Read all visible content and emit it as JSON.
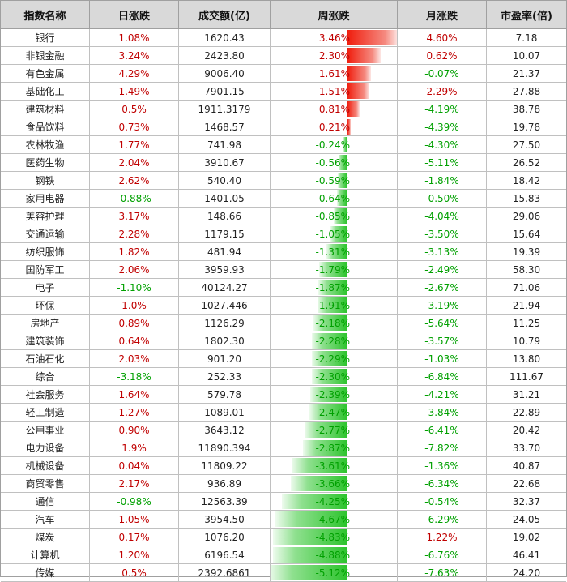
{
  "columns": [
    "指数名称",
    "日涨跌",
    "成交额(亿)",
    "周涨跌",
    "月涨跌",
    "市盈率(倍)"
  ],
  "colors": {
    "up": "#c00000",
    "down": "#00a000",
    "bar_up": "#f01e0e",
    "bar_down": "#2ec42e"
  },
  "rows": [
    {
      "name": "银行",
      "daily": "1.08%",
      "volume": "1620.43",
      "weekly": "3.46%",
      "monthly": "4.60%",
      "pe": "7.18"
    },
    {
      "name": "非银金融",
      "daily": "3.24%",
      "volume": "2423.80",
      "weekly": "2.30%",
      "monthly": "0.62%",
      "pe": "10.07"
    },
    {
      "name": "有色金属",
      "daily": "4.29%",
      "volume": "9006.40",
      "weekly": "1.61%",
      "monthly": "-0.07%",
      "pe": "21.37"
    },
    {
      "name": "基础化工",
      "daily": "1.49%",
      "volume": "7901.15",
      "weekly": "1.51%",
      "monthly": "2.29%",
      "pe": "27.88"
    },
    {
      "name": "建筑材料",
      "daily": "0.5%",
      "volume": "1911.3179",
      "weekly": "0.81%",
      "monthly": "-4.19%",
      "pe": "38.78"
    },
    {
      "name": "食品饮料",
      "daily": "0.73%",
      "volume": "1468.57",
      "weekly": "0.21%",
      "monthly": "-4.39%",
      "pe": "19.78"
    },
    {
      "name": "农林牧渔",
      "daily": "1.77%",
      "volume": "741.98",
      "weekly": "-0.24%",
      "monthly": "-4.30%",
      "pe": "27.50"
    },
    {
      "name": "医药生物",
      "daily": "2.04%",
      "volume": "3910.67",
      "weekly": "-0.56%",
      "monthly": "-5.11%",
      "pe": "26.52"
    },
    {
      "name": "钢铁",
      "daily": "2.62%",
      "volume": "540.40",
      "weekly": "-0.59%",
      "monthly": "-1.84%",
      "pe": "18.42"
    },
    {
      "name": "家用电器",
      "daily": "-0.88%",
      "volume": "1401.05",
      "weekly": "-0.64%",
      "monthly": "-0.50%",
      "pe": "15.83"
    },
    {
      "name": "美容护理",
      "daily": "3.17%",
      "volume": "148.66",
      "weekly": "-0.85%",
      "monthly": "-4.04%",
      "pe": "29.06"
    },
    {
      "name": "交通运输",
      "daily": "2.28%",
      "volume": "1179.15",
      "weekly": "-1.05%",
      "monthly": "-3.50%",
      "pe": "15.64"
    },
    {
      "name": "纺织服饰",
      "daily": "1.82%",
      "volume": "481.94",
      "weekly": "-1.31%",
      "monthly": "-3.13%",
      "pe": "19.39"
    },
    {
      "name": "国防军工",
      "daily": "2.06%",
      "volume": "3959.93",
      "weekly": "-1.79%",
      "monthly": "-2.49%",
      "pe": "58.30"
    },
    {
      "name": "电子",
      "daily": "-1.10%",
      "volume": "40124.27",
      "weekly": "-1.87%",
      "monthly": "-2.67%",
      "pe": "71.06"
    },
    {
      "name": "环保",
      "daily": "1.0%",
      "volume": "1027.446",
      "weekly": "-1.91%",
      "monthly": "-3.19%",
      "pe": "21.94"
    },
    {
      "name": "房地产",
      "daily": "0.89%",
      "volume": "1126.29",
      "weekly": "-2.18%",
      "monthly": "-5.64%",
      "pe": "11.25"
    },
    {
      "name": "建筑装饰",
      "daily": "0.64%",
      "volume": "1802.30",
      "weekly": "-2.28%",
      "monthly": "-3.57%",
      "pe": "10.79"
    },
    {
      "name": "石油石化",
      "daily": "2.03%",
      "volume": "901.20",
      "weekly": "-2.29%",
      "monthly": "-1.03%",
      "pe": "13.80"
    },
    {
      "name": "综合",
      "daily": "-3.18%",
      "volume": "252.33",
      "weekly": "-2.30%",
      "monthly": "-6.84%",
      "pe": "111.67"
    },
    {
      "name": "社会服务",
      "daily": "1.64%",
      "volume": "579.78",
      "weekly": "-2.39%",
      "monthly": "-4.21%",
      "pe": "31.21"
    },
    {
      "name": "轻工制造",
      "daily": "1.27%",
      "volume": "1089.01",
      "weekly": "-2.47%",
      "monthly": "-3.84%",
      "pe": "22.89"
    },
    {
      "name": "公用事业",
      "daily": "0.90%",
      "volume": "3643.12",
      "weekly": "-2.77%",
      "monthly": "-6.41%",
      "pe": "20.42"
    },
    {
      "name": "电力设备",
      "daily": "1.9%",
      "volume": "11890.394",
      "weekly": "-2.87%",
      "monthly": "-7.82%",
      "pe": "33.70"
    },
    {
      "name": "机械设备",
      "daily": "0.04%",
      "volume": "11809.22",
      "weekly": "-3.61%",
      "monthly": "-1.36%",
      "pe": "40.87"
    },
    {
      "name": "商贸零售",
      "daily": "2.17%",
      "volume": "936.89",
      "weekly": "-3.66%",
      "monthly": "-6.34%",
      "pe": "22.68"
    },
    {
      "name": "通信",
      "daily": "-0.98%",
      "volume": "12563.39",
      "weekly": "-4.25%",
      "monthly": "-0.54%",
      "pe": "32.37"
    },
    {
      "name": "汽车",
      "daily": "1.05%",
      "volume": "3954.50",
      "weekly": "-4.67%",
      "monthly": "-6.29%",
      "pe": "24.05"
    },
    {
      "name": "煤炭",
      "daily": "0.17%",
      "volume": "1076.20",
      "weekly": "-4.83%",
      "monthly": "1.22%",
      "pe": "19.02"
    },
    {
      "name": "计算机",
      "daily": "1.20%",
      "volume": "6196.54",
      "weekly": "-4.88%",
      "monthly": "-6.76%",
      "pe": "46.41"
    },
    {
      "name": "传媒",
      "daily": "0.5%",
      "volume": "2392.6861",
      "weekly": "-5.12%",
      "monthly": "-7.63%",
      "pe": "24.20"
    }
  ]
}
